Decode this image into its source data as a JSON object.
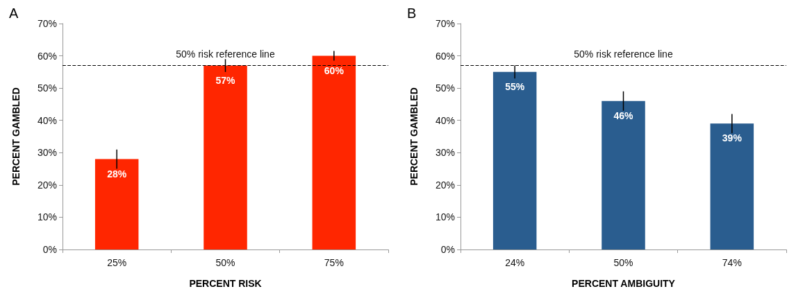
{
  "chart_data": [
    {
      "type": "bar",
      "title": "A",
      "xlabel": "PERCENT RISK",
      "ylabel": "PERCENT GAMBLED",
      "categories": [
        "25%",
        "50%",
        "75%"
      ],
      "values": [
        28,
        57,
        60
      ],
      "color": "#ff2600",
      "errors": [
        3,
        2,
        1.5
      ],
      "value_labels": [
        "28%",
        "57%",
        "60%"
      ],
      "ylim": [
        0,
        70
      ],
      "yticks": [
        {
          "value": 0,
          "label": "0%"
        },
        {
          "value": 10,
          "label": "10%"
        },
        {
          "value": 20,
          "label": "20%"
        },
        {
          "value": 30,
          "label": "30%"
        },
        {
          "value": 40,
          "label": "40%"
        },
        {
          "value": 50,
          "label": "50%"
        },
        {
          "value": 60,
          "label": "60%"
        },
        {
          "value": 70,
          "label": "70%"
        }
      ],
      "grid": false,
      "ref_lines": [
        {
          "axis": "y",
          "value": 57,
          "label": "50% risk reference line",
          "color": "#000000",
          "line_style": "dashed"
        }
      ]
    },
    {
      "type": "bar",
      "title": "B",
      "xlabel": "PERCENT AMBIGUITY",
      "ylabel": "PERCENT GAMBLED",
      "categories": [
        "24%",
        "50%",
        "74%"
      ],
      "values": [
        55,
        46,
        39
      ],
      "color": "#2a5d8f",
      "errors": [
        2,
        3,
        3
      ],
      "value_labels": [
        "55%",
        "46%",
        "39%"
      ],
      "ylim": [
        0,
        70
      ],
      "yticks": [
        {
          "value": 0,
          "label": "0%"
        },
        {
          "value": 10,
          "label": "10%"
        },
        {
          "value": 20,
          "label": "20%"
        },
        {
          "value": 30,
          "label": "30%"
        },
        {
          "value": 40,
          "label": "40%"
        },
        {
          "value": 50,
          "label": "50%"
        },
        {
          "value": 60,
          "label": "60%"
        },
        {
          "value": 70,
          "label": "70%"
        }
      ],
      "grid": false,
      "ref_lines": [
        {
          "axis": "y",
          "value": 57,
          "label": "50% risk reference line",
          "color": "#000000",
          "line_style": "dashed"
        }
      ]
    }
  ]
}
